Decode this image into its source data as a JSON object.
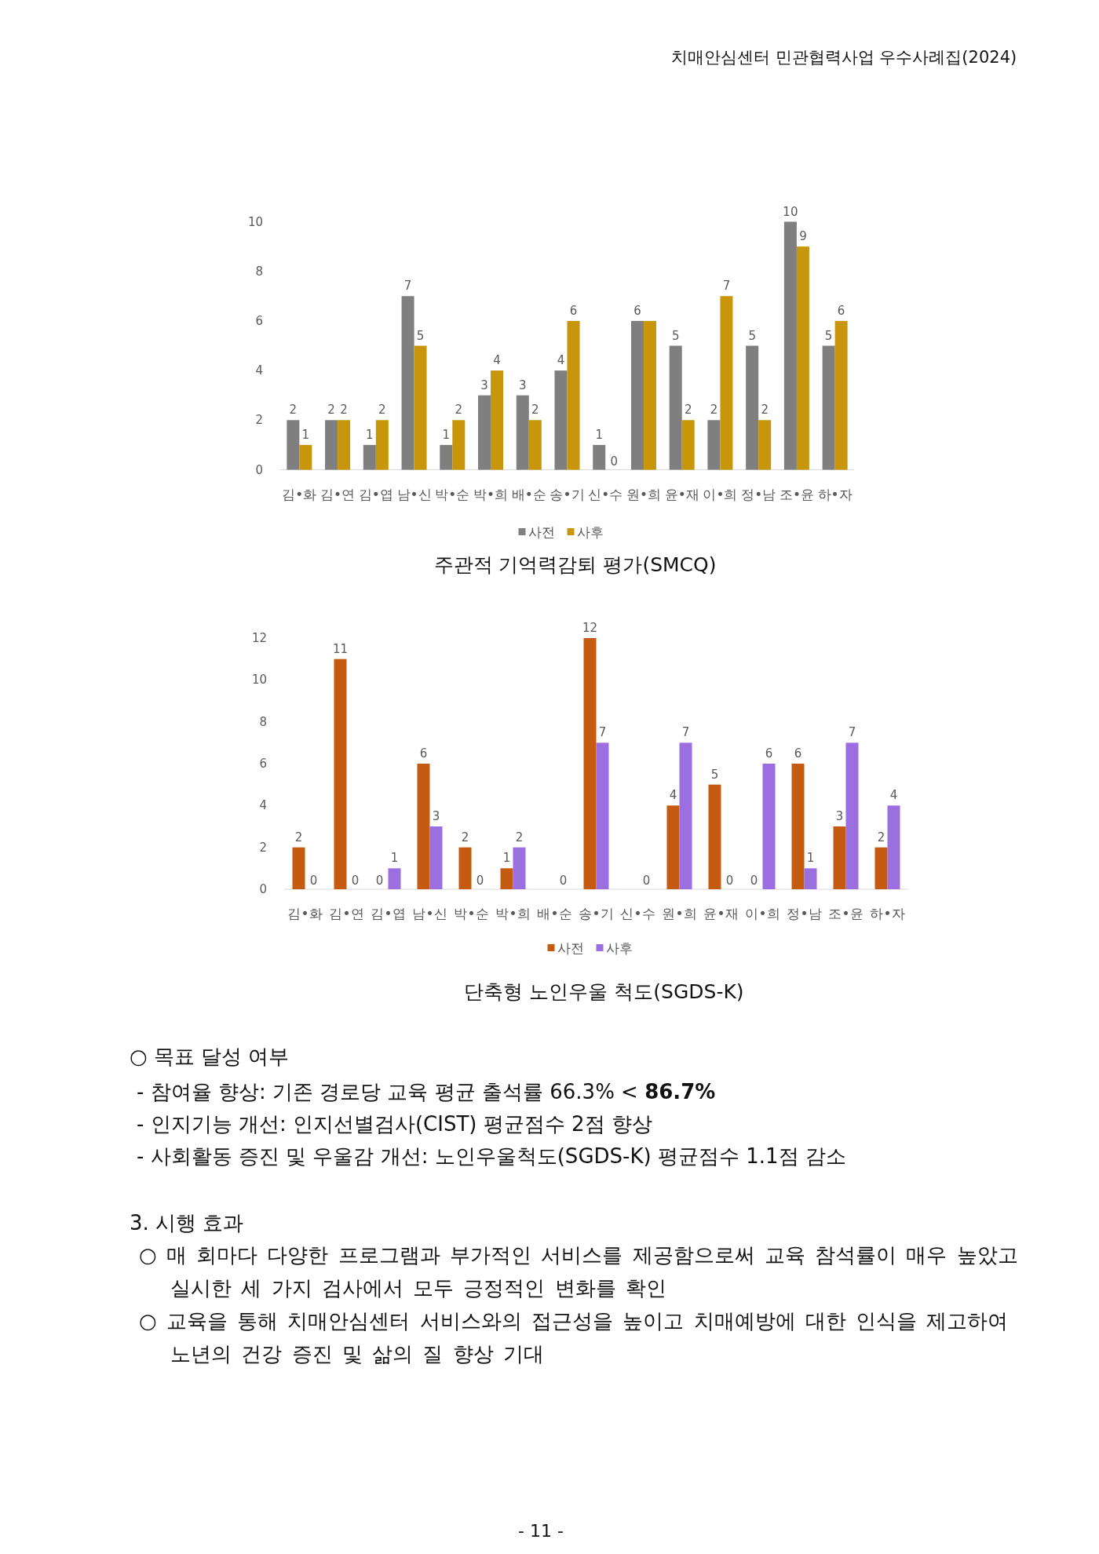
{
  "chart_data": [
    {
      "type": "bar",
      "title": "주관적 기억력감퇴 평가(SMCQ)",
      "categories": [
        "김•화",
        "김•연",
        "김•엽",
        "남•신",
        "박•순",
        "박•희",
        "배•순",
        "송•기",
        "신•수",
        "원•희",
        "윤•재",
        "이•희",
        "정•남",
        "조•윤",
        "하•자"
      ],
      "series": [
        {
          "name": "사전",
          "color": "#7f7f7f",
          "values": [
            2,
            2,
            1,
            7,
            1,
            3,
            3,
            4,
            1,
            6,
            5,
            2,
            5,
            10,
            5
          ],
          "value_labels": [
            "2",
            "2",
            "1",
            "7",
            "1",
            "3",
            "3",
            "4",
            "1",
            "6",
            "5",
            "2",
            "5",
            "10",
            "5"
          ]
        },
        {
          "name": "사후",
          "color": "#c8960a",
          "values": [
            1,
            2,
            2,
            5,
            2,
            4,
            2,
            6,
            0,
            6,
            2,
            7,
            2,
            9,
            6
          ],
          "value_labels": [
            "1",
            "2",
            "2",
            "5",
            "2",
            "4",
            "2",
            "6",
            "0",
            null,
            "2",
            "7",
            "2",
            "9",
            "6"
          ]
        }
      ],
      "ylim": [
        0,
        10
      ],
      "yticks": [
        0,
        2,
        4,
        6,
        8,
        10
      ],
      "legend": "bottom"
    },
    {
      "type": "bar",
      "title": "단축형 노인우울 척도(SGDS-K)",
      "categories": [
        "김•화",
        "김•연",
        "김•엽",
        "남•신",
        "박•순",
        "박•희",
        "배•순",
        "송•기",
        "신•수",
        "원•희",
        "윤•재",
        "이•희",
        "정•남",
        "조•윤",
        "하•자"
      ],
      "series": [
        {
          "name": "사전",
          "color": "#c55a11",
          "values": [
            2,
            11,
            0,
            6,
            2,
            1,
            0,
            12,
            0,
            4,
            5,
            0,
            6,
            3,
            2
          ],
          "value_labels": [
            "2",
            "11",
            "0",
            "6",
            "2",
            "1",
            null,
            "12",
            null,
            "4",
            "5",
            "0",
            "6",
            "3",
            "2"
          ]
        },
        {
          "name": "사후",
          "color": "#9b6fe0",
          "values": [
            0,
            0,
            1,
            3,
            0,
            2,
            0,
            7,
            0,
            7,
            0,
            6,
            1,
            7,
            4
          ],
          "value_labels": [
            "0",
            "0",
            "1",
            "3",
            "0",
            "2",
            "0",
            "7",
            "0",
            "7",
            "0",
            "6",
            "1",
            "7",
            "4"
          ]
        }
      ],
      "ylim": [
        0,
        12
      ],
      "yticks": [
        0,
        2,
        4,
        6,
        8,
        10,
        12
      ],
      "legend": "bottom"
    },
    {
      "type": "other",
      "annotations": [
        "치매안심센터 민관협력사업 우수사례집(2024)",
        "○ 목표 달성 여부",
        "- 참여율 향상: 기존 경로당 교육 평균 출석률 66.3% < **86.7%**",
        "- 인지기능 개선: 인지선별검사(CIST) 평균점수 2점 향상",
        "- 사회활동 증진 및 우울감 개선: 노인우울척도(SGDS-K) 평균점수 1.1점 감소",
        "3. 시행 효과",
        "○ 매 회마다 다양한 프로그램과 부가적인 서비스를 제공함으로써 교육 참석률이 매우 높았고 실시한 세 가지 검사에서 모두 긍정적인 변화를 확인",
        "○ 교육을 통해 치매안심센터 서비스와의 접근성을 높이고 치매예방에 대한 인식을 제고하여 노년의 건강 증진 및 삶의 질 향상 기대",
        "- 11 -"
      ]
    }
  ]
}
